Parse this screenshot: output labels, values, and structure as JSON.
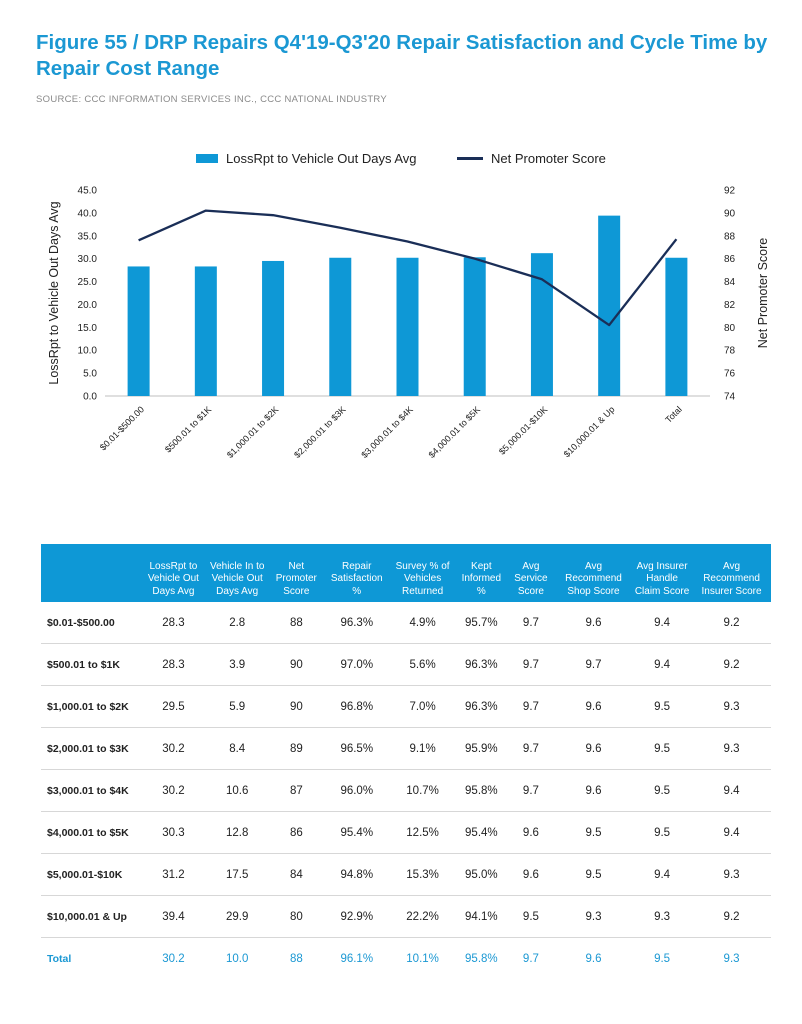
{
  "title": "Figure 55 / DRP Repairs Q4'19-Q3'20 Repair Satisfaction and Cycle Time by Repair Cost Range",
  "source": "SOURCE: CCC INFORMATION SERVICES INC., CCC NATIONAL INDUSTRY",
  "colors": {
    "bar": "#0e98d6",
    "line": "#1a2e57",
    "title": "#1b98d3"
  },
  "chart_data": {
    "type": "bar",
    "categories": [
      "$0.01-$500.00",
      "$500.01 to $1K",
      "$1,000.01 to $2K",
      "$2,000.01 to $3K",
      "$3,000.01 to $4K",
      "$4,000.01 to $5K",
      "$5,000.01-$10K",
      "$10,000.01 & Up",
      "Total"
    ],
    "series": [
      {
        "name": "LossRpt to Vehicle Out Days Avg",
        "type": "bar",
        "axis": "left",
        "values": [
          28.3,
          28.3,
          29.5,
          30.2,
          30.2,
          30.3,
          31.2,
          39.4,
          30.2
        ]
      },
      {
        "name": "Net Promoter Score",
        "type": "line",
        "axis": "right",
        "values": [
          87.6,
          90.2,
          89.8,
          88.7,
          87.5,
          86.0,
          84.2,
          80.2,
          87.7
        ]
      }
    ],
    "ylabel": "LossRpt to Vehicle Out Days Avg",
    "y2label": "Net Promoter Score",
    "ylim": [
      0,
      45
    ],
    "y2lim": [
      74,
      92
    ],
    "yticks": [
      "0.0",
      "5.0",
      "10.0",
      "15.0",
      "20.0",
      "25.0",
      "30.0",
      "35.0",
      "40.0",
      "45.0"
    ],
    "y2ticks": [
      "74",
      "76",
      "78",
      "80",
      "82",
      "84",
      "86",
      "88",
      "90",
      "92"
    ],
    "legend": "top-center",
    "grid": false
  },
  "table": {
    "headers": [
      "",
      "LossRpt to Vehicle Out Days Avg",
      "Vehicle In to Vehicle Out Days Avg",
      "Net Promoter Score",
      "Repair Satisfaction %",
      "Survey % of Vehicles Returned",
      "Kept Informed %",
      "Avg Service Score",
      "Avg Recommend Shop Score",
      "Avg Insurer Handle Claim Score",
      "Avg Recommend Insurer Score"
    ],
    "rows": [
      [
        "$0.01-$500.00",
        "28.3",
        "2.8",
        "88",
        "96.3%",
        "4.9%",
        "95.7%",
        "9.7",
        "9.6",
        "9.4",
        "9.2"
      ],
      [
        "$500.01 to $1K",
        "28.3",
        "3.9",
        "90",
        "97.0%",
        "5.6%",
        "96.3%",
        "9.7",
        "9.7",
        "9.4",
        "9.2"
      ],
      [
        "$1,000.01 to $2K",
        "29.5",
        "5.9",
        "90",
        "96.8%",
        "7.0%",
        "96.3%",
        "9.7",
        "9.6",
        "9.5",
        "9.3"
      ],
      [
        "$2,000.01 to $3K",
        "30.2",
        "8.4",
        "89",
        "96.5%",
        "9.1%",
        "95.9%",
        "9.7",
        "9.6",
        "9.5",
        "9.3"
      ],
      [
        "$3,000.01 to $4K",
        "30.2",
        "10.6",
        "87",
        "96.0%",
        "10.7%",
        "95.8%",
        "9.7",
        "9.6",
        "9.5",
        "9.4"
      ],
      [
        "$4,000.01 to $5K",
        "30.3",
        "12.8",
        "86",
        "95.4%",
        "12.5%",
        "95.4%",
        "9.6",
        "9.5",
        "9.5",
        "9.4"
      ],
      [
        "$5,000.01-$10K",
        "31.2",
        "17.5",
        "84",
        "94.8%",
        "15.3%",
        "95.0%",
        "9.6",
        "9.5",
        "9.4",
        "9.3"
      ],
      [
        "$10,000.01 & Up",
        "39.4",
        "29.9",
        "80",
        "92.9%",
        "22.2%",
        "94.1%",
        "9.5",
        "9.3",
        "9.3",
        "9.2"
      ]
    ],
    "total": [
      "Total",
      "30.2",
      "10.0",
      "88",
      "96.1%",
      "10.1%",
      "95.8%",
      "9.7",
      "9.6",
      "9.5",
      "9.3"
    ]
  }
}
